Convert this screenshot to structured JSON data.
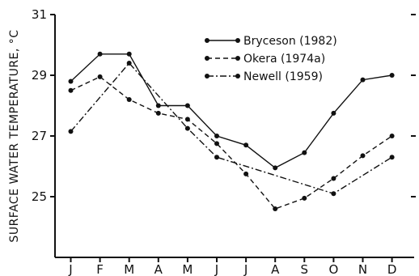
{
  "chart_data": {
    "type": "line",
    "title": "",
    "xlabel": "",
    "ylabel": "SURFACE WATER TEMPERATURE, °C",
    "categories": [
      "J",
      "F",
      "M",
      "A",
      "M",
      "J",
      "J",
      "A",
      "S",
      "O",
      "N",
      "D"
    ],
    "y_ticks": [
      "25",
      "27",
      "29",
      "31"
    ],
    "ylim": [
      23.0,
      31.0
    ],
    "grid": false,
    "legend_position": "top-center",
    "series": [
      {
        "name": "Bryceson (1982)",
        "style": "solid",
        "values": [
          28.8,
          29.7,
          29.7,
          28.0,
          28.0,
          27.0,
          26.7,
          25.95,
          26.45,
          27.75,
          28.85,
          29.0
        ]
      },
      {
        "name": "Okera (1974a)",
        "style": "dashed",
        "values": [
          28.5,
          28.95,
          28.2,
          27.75,
          27.55,
          26.75,
          25.75,
          24.6,
          24.95,
          25.6,
          26.35,
          27.0
        ]
      },
      {
        "name": "Newell (1959)",
        "style": "dash-dot",
        "values": [
          27.15,
          null,
          29.4,
          null,
          27.25,
          26.3,
          null,
          null,
          null,
          25.1,
          null,
          26.3
        ]
      }
    ]
  }
}
